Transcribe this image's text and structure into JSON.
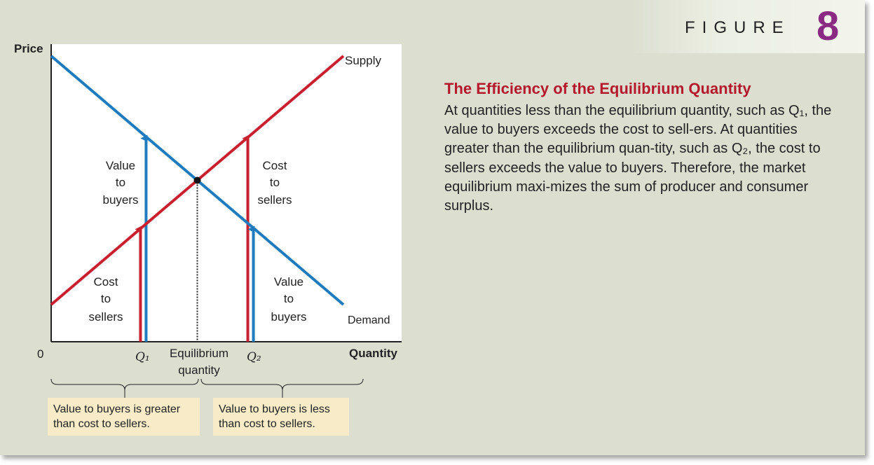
{
  "figure": {
    "word": "FIGURE",
    "number": "8"
  },
  "caption": {
    "title": "The Efficiency of the Equilibrium Quantity",
    "body": "At quantities less than the equilibrium quantity, such as Q₁, the value to buyers exceeds the cost to sell-ers. At quantities greater than the equilibrium quan-tity, such as Q₂, the cost to sellers exceeds the value to buyers. Therefore, the market equilibrium maxi-mizes the sum of producer and consumer surplus."
  },
  "chart_data": {
    "type": "line",
    "ylabel": "Price",
    "xlabel": "Quantity",
    "origin_label": "0",
    "x_tick_labels": {
      "q1": "Q₁",
      "equilibrium": "Equilibrium",
      "equilibrium_2": "quantity",
      "q2": "Q₂"
    },
    "series": [
      {
        "name": "Supply",
        "color": "#c8202f",
        "x": [
          0,
          100
        ],
        "y": [
          14,
          95
        ]
      },
      {
        "name": "Demand",
        "color": "#1f7bbd",
        "x": [
          0,
          100
        ],
        "y": [
          95,
          14
        ]
      }
    ],
    "equilibrium": {
      "x": 50,
      "y": 54.5
    },
    "q1": 32,
    "q2": 68,
    "annotations": {
      "value_buyers_left": [
        "Value",
        "to",
        "buyers"
      ],
      "cost_sellers_left": [
        "Cost",
        "to",
        "sellers"
      ],
      "cost_sellers_right": [
        "Cost",
        "to",
        "sellers"
      ],
      "value_buyers_right": [
        "Value",
        "to",
        "buyers"
      ]
    }
  },
  "notes": {
    "left": "Value to buyers is greater than cost to sellers.",
    "right": "Value to buyers is less than cost to sellers."
  },
  "colors": {
    "supply": "#c8202f",
    "demand": "#1f7bbd",
    "figure_number": "#8a2a83",
    "caption_title": "#b5182c",
    "note_bg": "#f7ebc8"
  }
}
